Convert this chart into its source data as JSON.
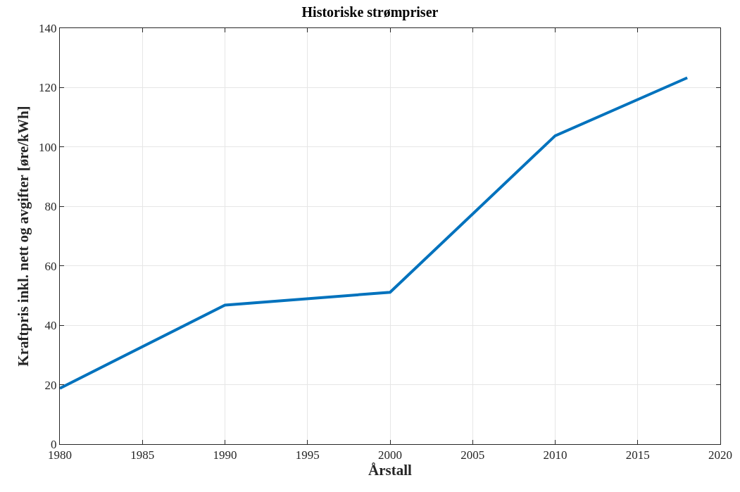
{
  "chart_data": {
    "type": "line",
    "title": "Historiske strømpriser",
    "xlabel": "Årstall",
    "ylabel": "Kraftpris inkl. nett og avgifter [øre/kWh]",
    "x": [
      1980,
      1990,
      2000,
      2010,
      2018
    ],
    "series": [
      {
        "color": "#0072bd",
        "values": [
          18.8,
          46.8,
          51.1,
          103.8,
          123.3
        ]
      }
    ],
    "xlim": [
      1980,
      2020
    ],
    "xticks": [
      1980,
      1985,
      1990,
      1995,
      2000,
      2005,
      2010,
      2015,
      2020
    ],
    "ylim": [
      0,
      140
    ],
    "yticks": [
      0,
      20,
      40,
      60,
      80,
      100,
      120,
      140
    ],
    "grid": true,
    "marker": "none",
    "line_style": "solid"
  }
}
